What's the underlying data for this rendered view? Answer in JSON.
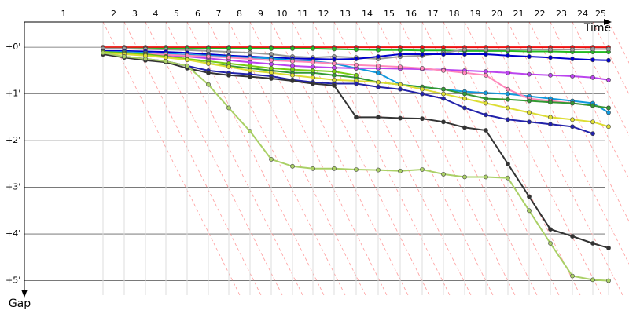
{
  "chart_data": {
    "type": "line",
    "x_label": "Time",
    "y_label": "Gap",
    "categories": [
      "1",
      "2",
      "3",
      "4",
      "5",
      "6",
      "7",
      "8",
      "9",
      "10",
      "11",
      "12",
      "13",
      "14",
      "15",
      "16",
      "17",
      "18",
      "19",
      "20",
      "21",
      "22",
      "23",
      "24",
      "25"
    ],
    "lap_ends": [
      200,
      254,
      308,
      360,
      414,
      468,
      520,
      574,
      628,
      682,
      734,
      788,
      844,
      900,
      956,
      1012,
      1066,
      1120,
      1174,
      1230,
      1284,
      1338,
      1394,
      1446,
      1486
    ],
    "xlim": [
      0,
      1538
    ],
    "ylim": [
      -0.54,
      5.31
    ],
    "yticks": [
      {
        "value": 0,
        "label": "+0'"
      },
      {
        "value": 1,
        "label": "+1'"
      },
      {
        "value": 2,
        "label": "+2'"
      },
      {
        "value": 3,
        "label": "+3'"
      },
      {
        "value": 4,
        "label": "+4'"
      },
      {
        "value": 5,
        "label": "+5'"
      }
    ],
    "grid": true,
    "series": [
      {
        "color": "#ee1111",
        "values": [
          0,
          0,
          0,
          0,
          0,
          0,
          0,
          0,
          0,
          0,
          0,
          0,
          0,
          0,
          0,
          0,
          0,
          0,
          0,
          0,
          0,
          0,
          0,
          0,
          0
        ]
      },
      {
        "color": "#22bb22",
        "values": [
          0.03,
          0.03,
          0.03,
          0.03,
          0.03,
          0.03,
          0.03,
          0.03,
          0.03,
          0.03,
          0.03,
          0.04,
          0.05,
          0.06,
          0.06,
          0.07,
          0.07,
          0.08,
          0.08,
          0.08,
          0.09,
          0.09,
          0.1,
          0.1,
          0.1
        ]
      },
      {
        "color": "#999999",
        "values": [
          0.03,
          0.03,
          0.04,
          0.05,
          0.06,
          0.08,
          0.1,
          0.12,
          0.15,
          0.2,
          0.22,
          0.2,
          0.22,
          0.25,
          0.2,
          0.18,
          0.12,
          0.05,
          0.05,
          0.05,
          0.05,
          0.05,
          0.05,
          0.04,
          0.04
        ]
      },
      {
        "color": "#0000cc",
        "values": [
          0.08,
          0.08,
          0.09,
          0.1,
          0.12,
          0.15,
          0.18,
          0.2,
          0.22,
          0.24,
          0.25,
          0.26,
          0.25,
          0.2,
          0.15,
          0.15,
          0.15,
          0.15,
          0.15,
          0.18,
          0.2,
          0.22,
          0.25,
          0.27,
          0.28
        ]
      },
      {
        "color": "#1199dd",
        "values": [
          0.1,
          0.1,
          0.12,
          0.14,
          0.16,
          0.18,
          0.2,
          0.22,
          0.24,
          0.28,
          0.3,
          0.35,
          0.45,
          0.55,
          0.8,
          0.85,
          0.9,
          0.95,
          0.98,
          1.0,
          1.05,
          1.1,
          1.15,
          1.2,
          1.4
        ]
      },
      {
        "color": "#bb44ee",
        "values": [
          0.12,
          0.13,
          0.15,
          0.17,
          0.2,
          0.24,
          0.28,
          0.32,
          0.36,
          0.4,
          0.42,
          0.44,
          0.45,
          0.45,
          0.46,
          0.47,
          0.48,
          0.5,
          0.52,
          0.55,
          0.58,
          0.6,
          0.62,
          0.65,
          0.7
        ]
      },
      {
        "color": "#ff88bb",
        "values": [
          0.1,
          0.12,
          0.14,
          0.16,
          0.18,
          0.2,
          0.22,
          0.25,
          0.28,
          0.3,
          0.32,
          0.35,
          0.38,
          0.4,
          0.42,
          0.45,
          0.5,
          0.55,
          0.6,
          0.9,
          1.1,
          1.15,
          1.2,
          1.25,
          1.3
        ]
      },
      {
        "color": "#339933",
        "values": [
          0.1,
          0.12,
          0.15,
          0.2,
          0.25,
          0.35,
          0.4,
          0.45,
          0.5,
          0.55,
          0.55,
          0.6,
          0.65,
          0.75,
          0.8,
          0.85,
          0.9,
          1.0,
          1.1,
          1.12,
          1.15,
          1.18,
          1.2,
          1.25,
          1.3
        ]
      },
      {
        "color": "#77cc11",
        "values": [
          0.1,
          0.13,
          0.16,
          0.2,
          0.25,
          0.3,
          0.35,
          0.4,
          0.45,
          0.48,
          0.5,
          0.52,
          0.6,
          null,
          null,
          null,
          null,
          null,
          null,
          null,
          null,
          null,
          null,
          null,
          null
        ]
      },
      {
        "color": "#dddd33",
        "values": [
          0.12,
          0.15,
          0.18,
          0.22,
          0.27,
          0.35,
          0.42,
          0.5,
          0.55,
          0.6,
          0.65,
          0.7,
          0.72,
          0.75,
          0.8,
          0.9,
          1.0,
          1.1,
          1.2,
          1.3,
          1.4,
          1.5,
          1.55,
          1.6,
          1.7
        ]
      },
      {
        "color": "#2222aa",
        "values": [
          0.15,
          0.2,
          0.25,
          0.3,
          0.4,
          0.5,
          0.55,
          0.58,
          0.62,
          0.7,
          0.75,
          0.78,
          0.78,
          0.85,
          0.9,
          1.0,
          1.1,
          1.3,
          1.45,
          1.55,
          1.6,
          1.65,
          1.7,
          1.85,
          null
        ]
      },
      {
        "color": "#333333",
        "values": [
          0.15,
          0.22,
          0.28,
          0.32,
          0.45,
          0.55,
          0.6,
          0.63,
          0.67,
          0.72,
          0.78,
          0.82,
          1.5,
          1.5,
          1.52,
          1.53,
          1.6,
          1.72,
          1.78,
          2.5,
          3.2,
          3.9,
          4.05,
          4.2,
          4.3
        ]
      },
      {
        "color": "#aad066",
        "values": [
          0.12,
          0.2,
          0.25,
          0.3,
          0.4,
          0.8,
          1.3,
          1.8,
          2.4,
          2.55,
          2.6,
          2.6,
          2.62,
          2.63,
          2.65,
          2.62,
          2.72,
          2.78,
          2.78,
          2.8,
          3.5,
          4.2,
          4.9,
          4.98,
          5.0
        ]
      }
    ]
  }
}
